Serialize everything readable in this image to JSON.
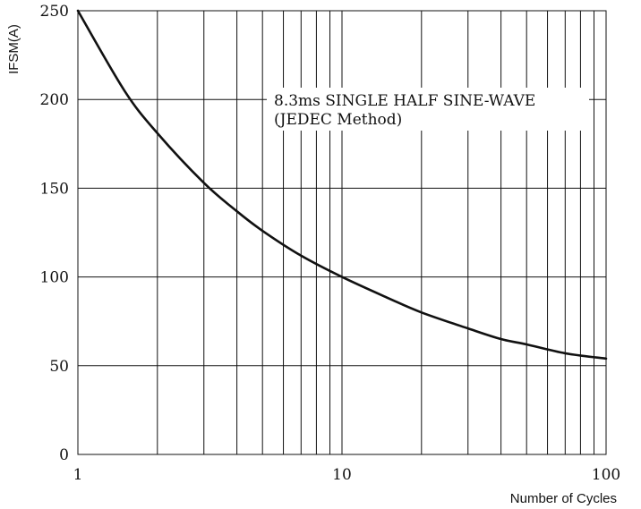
{
  "chart_data": {
    "type": "line",
    "title": "",
    "xlabel": "Number of Cycles",
    "ylabel": "IFSM(A)",
    "xscale": "log",
    "xlim": [
      1,
      100
    ],
    "ylim": [
      0,
      250
    ],
    "x_ticks": [
      "1",
      "10",
      "100"
    ],
    "y_ticks": [
      "0",
      "50",
      "100",
      "150",
      "200",
      "250"
    ],
    "grid": true,
    "annotation": {
      "line1": "8.3ms SINGLE HALF SINE-WAVE",
      "line2": "(JEDEC Method)"
    },
    "series": [
      {
        "color": "#111111",
        "x": [
          1,
          1.5,
          2,
          3,
          4,
          5,
          7,
          10,
          15,
          20,
          30,
          40,
          50,
          70,
          100
        ],
        "y": [
          250,
          205,
          181,
          153,
          137,
          126,
          112,
          100,
          88,
          80,
          71,
          65,
          62,
          57,
          54
        ]
      }
    ]
  }
}
